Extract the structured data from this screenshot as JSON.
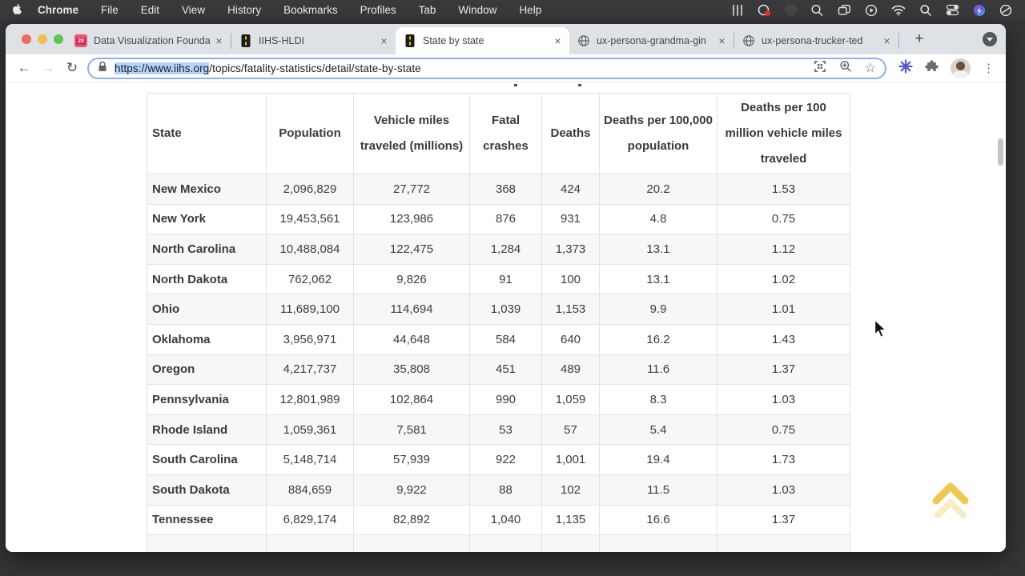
{
  "menu_bar": {
    "app_name": "Chrome",
    "menus": [
      "File",
      "Edit",
      "View",
      "History",
      "Bookmarks",
      "Profiles",
      "Tab",
      "Window",
      "Help"
    ],
    "status_icons": [
      "waves-icon",
      "screen-record-icon",
      "dimmed-app-icon",
      "zoom-lens-icon",
      "window-stack-icon",
      "play-circle-icon",
      "wifi-icon",
      "spotlight-search-icon",
      "control-center-icon",
      "color-app-icon",
      "do-not-disturb-icon"
    ]
  },
  "browser": {
    "tabs": [
      {
        "title": "Data Visualization Founda",
        "favicon": "calendar-20",
        "favicon_text": "20",
        "active": false
      },
      {
        "title": "IIHS-HLDI",
        "favicon": "iihs-road",
        "active": false
      },
      {
        "title": "State by state",
        "favicon": "iihs-road",
        "active": true
      },
      {
        "title": "ux-persona-grandma-gin",
        "favicon": "globe",
        "active": false
      },
      {
        "title": "ux-persona-trucker-ted",
        "favicon": "globe",
        "active": false
      }
    ],
    "close_glyph": "×",
    "new_tab_glyph": "+",
    "star_glyph": "☆",
    "kebab_glyph": "⋮",
    "back_glyph": "←",
    "forward_glyph": "→",
    "reload_glyph": "↻",
    "url": {
      "selected": "https://www.iihs.org",
      "rest": "/topics/fatality-statistics/detail/state-by-state"
    }
  },
  "page": {
    "table": {
      "headers": [
        "State",
        "Population",
        "Vehicle miles traveled (millions)",
        "Fatal crashes",
        "Deaths",
        "Deaths per 100,000 population",
        "Deaths per 100 million vehicle miles traveled"
      ],
      "rows": [
        [
          "New Mexico",
          "2,096,829",
          "27,772",
          "368",
          "424",
          "20.2",
          "1.53"
        ],
        [
          "New York",
          "19,453,561",
          "123,986",
          "876",
          "931",
          "4.8",
          "0.75"
        ],
        [
          "North Carolina",
          "10,488,084",
          "122,475",
          "1,284",
          "1,373",
          "13.1",
          "1.12"
        ],
        [
          "North Dakota",
          "762,062",
          "9,826",
          "91",
          "100",
          "13.1",
          "1.02"
        ],
        [
          "Ohio",
          "11,689,100",
          "114,694",
          "1,039",
          "1,153",
          "9.9",
          "1.01"
        ],
        [
          "Oklahoma",
          "3,956,971",
          "44,648",
          "584",
          "640",
          "16.2",
          "1.43"
        ],
        [
          "Oregon",
          "4,217,737",
          "35,808",
          "451",
          "489",
          "11.6",
          "1.37"
        ],
        [
          "Pennsylvania",
          "12,801,989",
          "102,864",
          "990",
          "1,059",
          "8.3",
          "1.03"
        ],
        [
          "Rhode Island",
          "1,059,361",
          "7,581",
          "53",
          "57",
          "5.4",
          "0.75"
        ],
        [
          "South Carolina",
          "5,148,714",
          "57,939",
          "922",
          "1,001",
          "19.4",
          "1.73"
        ],
        [
          "South Dakota",
          "884,659",
          "9,922",
          "88",
          "102",
          "11.5",
          "1.03"
        ],
        [
          "Tennessee",
          "6,829,174",
          "82,892",
          "1,040",
          "1,135",
          "16.6",
          "1.37"
        ]
      ]
    }
  },
  "colors": {
    "menubar_bg": "#3a3a3c",
    "tabstrip_bg": "#dee1e6",
    "traffic_red": "#ed6a5f",
    "traffic_yellow": "#f5bd4f",
    "traffic_green": "#61c554",
    "omnibox_focus_ring": "#8fb0e8",
    "url_selection": "#b3d4fc",
    "row_alt_bg": "#f7f7f7",
    "table_border": "#e2e2e2",
    "scrolltop_chevron": "#eec84f",
    "scrolltop_chevron_faded": "#f5ecc2",
    "iihs_favicon_yellow": "#f5c518",
    "extension_purple": "#5856d6"
  }
}
